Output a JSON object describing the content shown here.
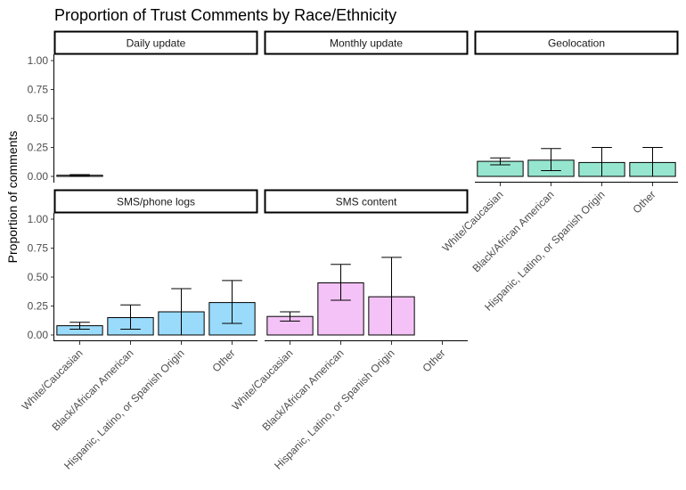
{
  "title": "Proportion of Trust Comments by Race/Ethnicity",
  "ylabel": "Proportion of comments",
  "chart_data": {
    "type": "bar",
    "title": "Proportion of Trust Comments by Race/Ethnicity",
    "xlabel": "",
    "ylabel": "Proportion of comments",
    "ylim": [
      0,
      1.0
    ],
    "yticks": [
      "0.00",
      "0.25",
      "0.50",
      "0.75",
      "1.00"
    ],
    "categories": [
      "White/Caucasian",
      "Black/African American",
      "Hispanic, Latino, or Spanish Origin",
      "Other"
    ],
    "grid": false,
    "legend": "none",
    "facets": [
      {
        "name": "Daily update",
        "color": "#E3E3E3",
        "values": [
          0.01,
          0.0,
          0.0,
          0.0
        ],
        "error_low": [
          0.005,
          0.0,
          0.0,
          0.0
        ],
        "error_high": [
          0.015,
          0.0,
          0.0,
          0.0
        ]
      },
      {
        "name": "Monthly update",
        "color": "#E3E3E3",
        "values": [
          0.0,
          0.0,
          0.0,
          0.0
        ],
        "error_low": [
          0.0,
          0.0,
          0.0,
          0.0
        ],
        "error_high": [
          0.0,
          0.0,
          0.0,
          0.0
        ]
      },
      {
        "name": "Geolocation",
        "color": "#96E6CF",
        "values": [
          0.13,
          0.14,
          0.12,
          0.12
        ],
        "error_low": [
          0.1,
          0.05,
          0.0,
          0.0
        ],
        "error_high": [
          0.16,
          0.24,
          0.25,
          0.25
        ]
      },
      {
        "name": "SMS/phone logs",
        "color": "#9ADBFB",
        "values": [
          0.08,
          0.15,
          0.2,
          0.28
        ],
        "error_low": [
          0.05,
          0.05,
          0.0,
          0.1
        ],
        "error_high": [
          0.11,
          0.26,
          0.4,
          0.47
        ]
      },
      {
        "name": "SMS content",
        "color": "#F4C2F6",
        "values": [
          0.16,
          0.45,
          0.33,
          0.0
        ],
        "error_low": [
          0.12,
          0.3,
          0.0,
          0.0
        ],
        "error_high": [
          0.2,
          0.61,
          0.67,
          0.0
        ]
      }
    ]
  }
}
